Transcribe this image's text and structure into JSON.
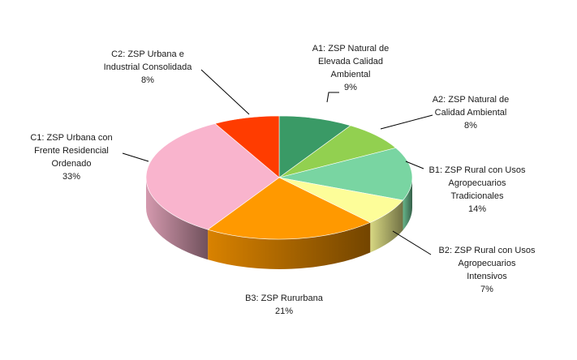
{
  "chart_data": {
    "type": "pie",
    "style": "3d",
    "slices": [
      {
        "name": "A1: ZSP Natural de Elevada Calidad Ambiental",
        "value": 9,
        "label_lines": [
          "A1: ZSP Natural de",
          "Elevada Calidad",
          "Ambiental",
          "9%"
        ],
        "color": "#3a9a66"
      },
      {
        "name": "A2: ZSP Natural de Calidad Ambiental",
        "value": 8,
        "label_lines": [
          "A2: ZSP Natural de",
          "Calidad Ambiental",
          "8%"
        ],
        "color": "#92d050"
      },
      {
        "name": "B1: ZSP Rural con Usos Agropecuarios Tradicionales",
        "value": 14,
        "label_lines": [
          "B1: ZSP Rural con Usos",
          "Agropecuarios",
          "Tradicionales",
          "14%"
        ],
        "color": "#79d5a2"
      },
      {
        "name": "B2: ZSP Rural con Usos Agropecuarios Intensivos",
        "value": 7,
        "label_lines": [
          "B2: ZSP Rural con Usos",
          "Agropecuarios",
          "Intensivos",
          "7%"
        ],
        "color": "#fdfd99"
      },
      {
        "name": "B3: ZSP Rururbana",
        "value": 21,
        "label_lines": [
          "B3: ZSP Rururbana",
          "21%"
        ],
        "color": "#ff9900"
      },
      {
        "name": "C1: ZSP Urbana con Frente Residencial Ordenado",
        "value": 33,
        "label_lines": [
          "C1: ZSP Urbana con",
          "Frente Residencial",
          "Ordenado",
          "33%"
        ],
        "color": "#f9b4cd"
      },
      {
        "name": "C2: ZSP Urbana e Industrial Consolidada",
        "value": 8,
        "label_lines": [
          "C2: ZSP Urbana e",
          "Industrial Consolidada",
          "8%"
        ],
        "color": "#ff3c00"
      }
    ]
  }
}
